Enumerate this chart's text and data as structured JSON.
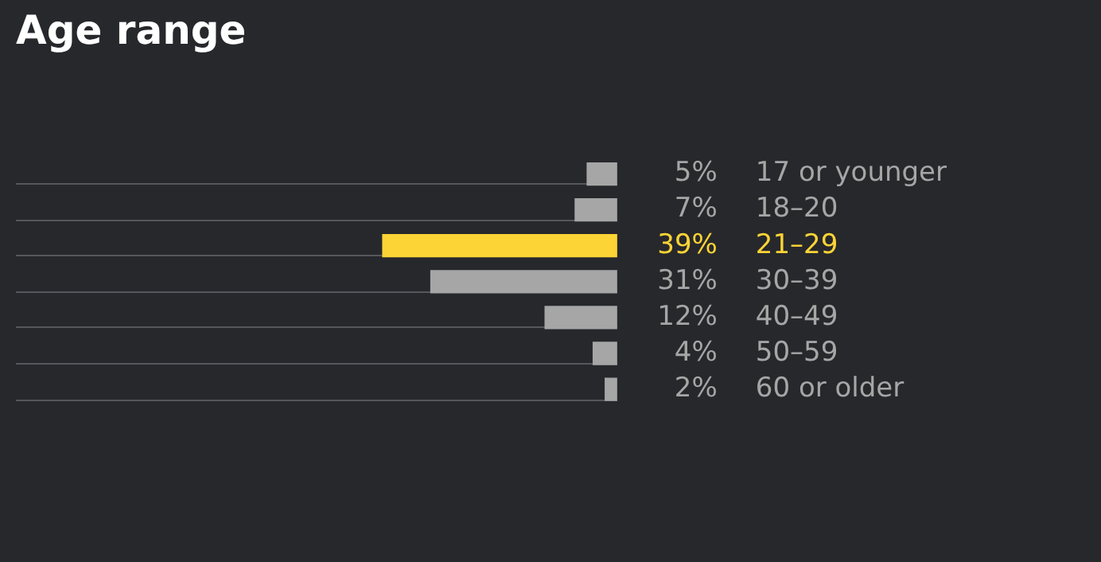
{
  "chart_data": {
    "type": "bar",
    "orientation": "horizontal",
    "title": "Age range",
    "categories": [
      "17 or younger",
      "18–20",
      "21–29",
      "30–39",
      "40–49",
      "50–59",
      "60 or older"
    ],
    "values": [
      5,
      7,
      39,
      31,
      12,
      4,
      2
    ],
    "colors": [
      "#a6a6a6",
      "#a6a6a6",
      "#fdd436",
      "#a6a6a6",
      "#a6a6a6",
      "#a6a6a6",
      "#a6a6a6"
    ],
    "value_labels": [
      "5%",
      "7%",
      "39%",
      "31%",
      "12%",
      "4%",
      "2%"
    ],
    "xlim": [
      100,
      0
    ],
    "tick_labels": "y",
    "legend": false
  }
}
